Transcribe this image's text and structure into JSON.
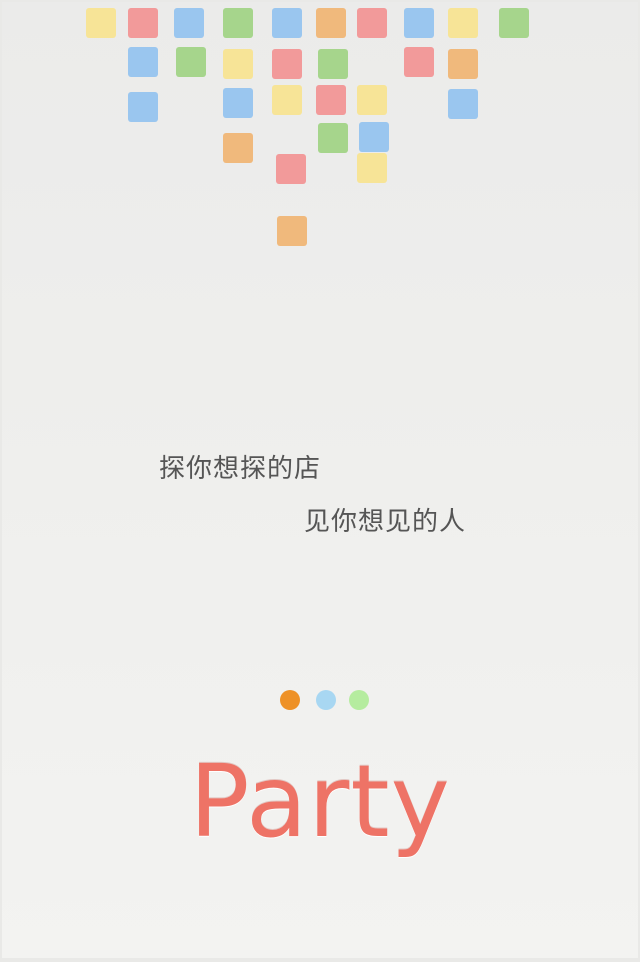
{
  "splash": {
    "tagline_line1": "探你想探的店",
    "tagline_line2": "见你想见的人",
    "logo_text": "Party"
  },
  "colors": {
    "yellow": "#f7e497",
    "pink": "#f29a9a",
    "blue": "#9ac6ef",
    "green": "#a6d58c",
    "orange": "#f0b97c",
    "logo": "#ee7366"
  },
  "pager": {
    "page_count": 3,
    "active_index": 0,
    "dot_colors": [
      "#ee9126",
      "#a8d7f2",
      "#b5ec9f"
    ]
  }
}
